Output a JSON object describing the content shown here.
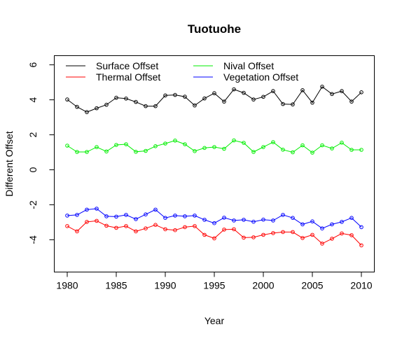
{
  "chart_data": {
    "type": "line",
    "title": "Tuotuohe",
    "xlabel": "Year",
    "ylabel": "Different Offset",
    "xlim": [
      1980,
      2010
    ],
    "ylim": [
      -5.6,
      6.6
    ],
    "xticks": [
      1980,
      1985,
      1990,
      1995,
      2000,
      2005,
      2010
    ],
    "yticks": [
      -4,
      -2,
      0,
      2,
      4,
      6
    ],
    "grid": false,
    "legend_position": "top-left",
    "x": [
      1980,
      1981,
      1982,
      1983,
      1984,
      1985,
      1986,
      1987,
      1988,
      1989,
      1990,
      1991,
      1992,
      1993,
      1994,
      1995,
      1996,
      1997,
      1998,
      1999,
      2000,
      2001,
      2002,
      2003,
      2004,
      2005,
      2006,
      2007,
      2008,
      2009,
      2010
    ],
    "series": [
      {
        "name": "Surface Offset",
        "color": "#000000",
        "values": [
          4.02,
          3.6,
          3.3,
          3.52,
          3.72,
          4.12,
          4.07,
          3.88,
          3.64,
          3.64,
          4.25,
          4.28,
          4.18,
          3.68,
          4.08,
          4.38,
          3.9,
          4.6,
          4.4,
          4.02,
          4.17,
          4.5,
          3.76,
          3.74,
          4.55,
          3.84,
          4.75,
          4.33,
          4.5,
          3.9,
          4.43
        ]
      },
      {
        "name": "Thermal Offset",
        "color": "#ff0000",
        "values": [
          -3.22,
          -3.52,
          -2.98,
          -2.92,
          -3.2,
          -3.32,
          -3.22,
          -3.52,
          -3.35,
          -3.15,
          -3.4,
          -3.45,
          -3.28,
          -3.22,
          -3.72,
          -3.92,
          -3.42,
          -3.4,
          -3.88,
          -3.86,
          -3.72,
          -3.62,
          -3.56,
          -3.56,
          -3.9,
          -3.72,
          -4.22,
          -3.94,
          -3.64,
          -3.74,
          -4.32
        ]
      },
      {
        "name": "Nival Offset",
        "color": "#00ee00",
        "values": [
          1.38,
          1.02,
          1.02,
          1.3,
          1.05,
          1.42,
          1.46,
          1.03,
          1.08,
          1.35,
          1.5,
          1.67,
          1.46,
          1.07,
          1.25,
          1.3,
          1.2,
          1.68,
          1.54,
          1.02,
          1.3,
          1.58,
          1.15,
          1.0,
          1.4,
          0.98,
          1.4,
          1.22,
          1.55,
          1.14,
          1.14
        ]
      },
      {
        "name": "Vegetation Offset",
        "color": "#0000ff",
        "values": [
          -2.62,
          -2.58,
          -2.28,
          -2.22,
          -2.66,
          -2.68,
          -2.58,
          -2.82,
          -2.55,
          -2.28,
          -2.75,
          -2.62,
          -2.66,
          -2.62,
          -2.86,
          -3.05,
          -2.74,
          -2.9,
          -2.86,
          -2.97,
          -2.85,
          -2.9,
          -2.58,
          -2.75,
          -3.12,
          -2.95,
          -3.35,
          -3.12,
          -2.98,
          -2.75,
          -3.28
        ]
      }
    ]
  }
}
